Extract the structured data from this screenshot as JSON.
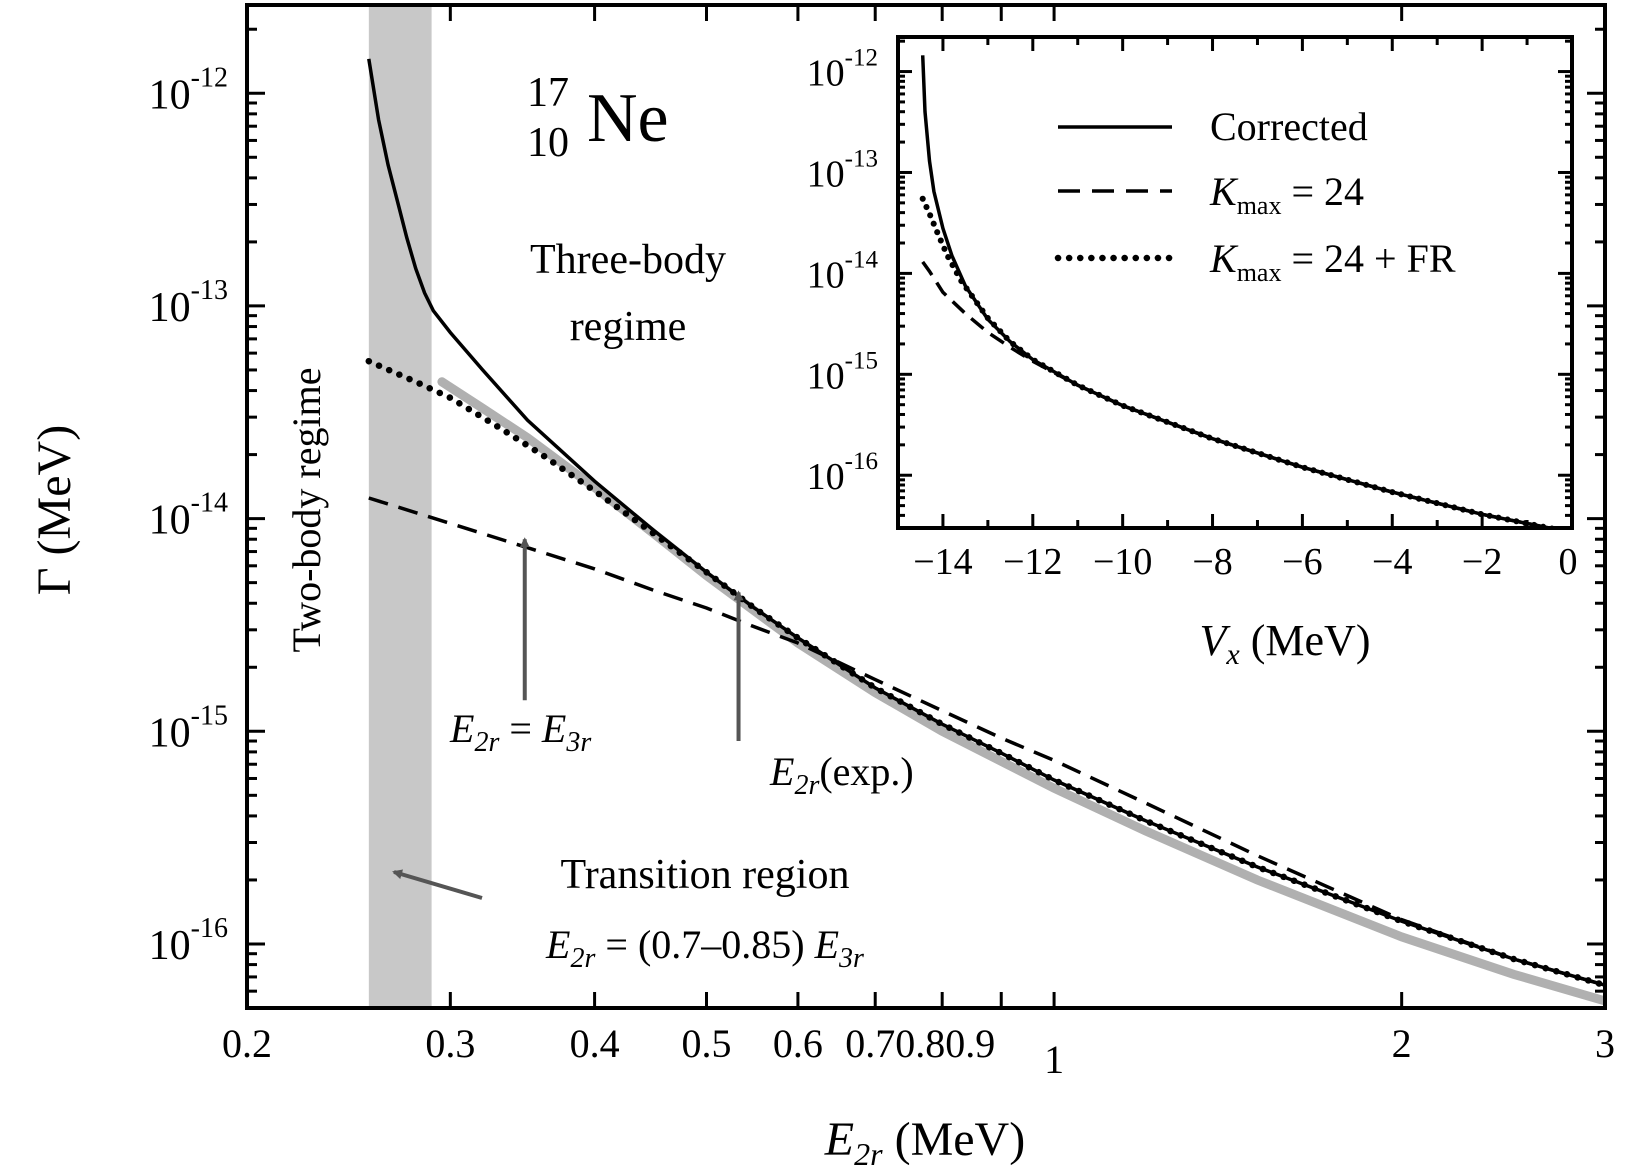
{
  "chart_data": [
    {
      "type": "line",
      "xscale": "log",
      "yscale": "log",
      "xlim": [
        0.2,
        3
      ],
      "ylim": [
        5e-17,
        2.6e-12
      ],
      "xlabel": {
        "var": "E",
        "sub": "2r",
        "unit": "(MeV)"
      },
      "ylabel": {
        "var": "Γ",
        "unit": "(MeV)"
      },
      "xticks": [
        {
          "value": 0.2,
          "label": "0.2"
        },
        {
          "value": 0.3,
          "label": "0.3"
        },
        {
          "value": 0.4,
          "label": "0.4"
        },
        {
          "value": 0.5,
          "label": "0.5"
        },
        {
          "value": 0.6,
          "label": "0.6"
        },
        {
          "value": 0.7,
          "label": "0.70.80.9"
        },
        {
          "value": 1,
          "label": "1"
        },
        {
          "value": 2,
          "label": "2"
        },
        {
          "value": 3,
          "label": "3"
        }
      ],
      "yticks": [
        {
          "value": 1e-12,
          "base": "10",
          "exp": "-12"
        },
        {
          "value": 1e-13,
          "base": "10",
          "exp": "-13"
        },
        {
          "value": 1e-14,
          "base": "10",
          "exp": "-14"
        },
        {
          "value": 1e-15,
          "base": "10",
          "exp": "-15"
        },
        {
          "value": 1e-16,
          "base": "10",
          "exp": "-16"
        }
      ],
      "transition_band": {
        "x_from": 0.255,
        "x_to": 0.289
      },
      "nucleus": {
        "A": "17",
        "Z": "10",
        "symbol": "Ne"
      },
      "labels": {
        "three_body_line1": "Three-body",
        "three_body_line2": "regime",
        "two_body": "Two-body regime",
        "transition_title": "Transition region",
        "transition_formula_mid": " = (0.7–0.85) ",
        "arrow1_mid": " = ",
        "arrow2_tail": "(exp.)"
      },
      "arrows": [
        {
          "name": "E2r=E3r",
          "x": 0.348,
          "y_from": 1.4e-15,
          "y_to": 8e-15
        },
        {
          "name": "E2r(exp.)",
          "x": 0.533,
          "y_from": 9e-16,
          "y_to": 4.5e-15
        }
      ],
      "series": [
        {
          "style": "solid",
          "x": [
            0.255,
            0.26,
            0.265,
            0.27,
            0.275,
            0.28,
            0.285,
            0.29,
            0.3,
            0.32,
            0.35,
            0.4,
            0.45,
            0.5,
            0.55,
            0.6,
            0.7,
            0.8,
            0.9,
            1.0,
            1.2,
            1.5,
            2.0,
            2.5,
            3.0
          ],
          "y": [
            1.45e-12,
            7.5e-13,
            4.6e-13,
            3.1e-13,
            2.1e-13,
            1.5e-13,
            1.15e-13,
            9.5e-14,
            7.5e-14,
            5e-14,
            2.9e-14,
            1.5e-14,
            8.8e-15,
            5.6e-15,
            3.8e-15,
            2.75e-15,
            1.6e-15,
            1.08e-15,
            7.9e-16,
            5.9e-16,
            3.8e-16,
            2.3e-16,
            1.28e-16,
            8.5e-17,
            6.4e-17
          ]
        },
        {
          "style": "dashed",
          "x": [
            0.255,
            0.3,
            0.35,
            0.4,
            0.45,
            0.5,
            0.55,
            0.6,
            0.7,
            0.8,
            0.9,
            1.0,
            1.2,
            1.5,
            2.0,
            2.5,
            3.0
          ],
          "y": [
            1.25e-14,
            9.5e-15,
            7.3e-15,
            5.8e-15,
            4.6e-15,
            3.8e-15,
            3.1e-15,
            2.6e-15,
            1.75e-15,
            1.25e-15,
            9.3e-16,
            7.3e-16,
            4.6e-16,
            2.6e-16,
            1.3e-16,
            8.5e-17,
            6.4e-17
          ]
        },
        {
          "style": "dotted",
          "x": [
            0.255,
            0.28,
            0.3,
            0.33,
            0.36,
            0.4,
            0.45,
            0.5,
            0.55,
            0.6,
            0.7,
            0.8,
            0.9,
            1.0,
            1.2,
            1.5,
            2.0,
            2.5,
            3.0
          ],
          "y": [
            5.5e-14,
            4.4e-14,
            3.7e-14,
            2.7e-14,
            2e-14,
            1.35e-14,
            8.5e-15,
            5.6e-15,
            3.8e-15,
            2.75e-15,
            1.6e-15,
            1.08e-15,
            7.9e-16,
            5.9e-16,
            3.8e-16,
            2.3e-16,
            1.28e-16,
            8.5e-17,
            6.4e-17
          ]
        },
        {
          "style": "gray-thick",
          "x": [
            0.295,
            0.32,
            0.35,
            0.4,
            0.45,
            0.5,
            0.6,
            0.7,
            0.8,
            1.0,
            1.2,
            1.5,
            2.0,
            2.5,
            3.0
          ],
          "y": [
            4.4e-14,
            3.3e-14,
            2.4e-14,
            1.4e-14,
            8.5e-15,
            5.4e-15,
            2.6e-15,
            1.52e-15,
            1e-15,
            5.4e-16,
            3.4e-16,
            2e-16,
            1.08e-16,
            7.2e-17,
            5.4e-17
          ]
        }
      ]
    },
    {
      "type": "line",
      "xscale": "linear",
      "yscale": "log",
      "xlim": [
        -15,
        0
      ],
      "ylim": [
        3e-17,
        2.2e-12
      ],
      "xlabel": {
        "var": "V",
        "sub": "x",
        "unit": "(MeV)"
      },
      "xticks": [
        {
          "value": -14,
          "label": "−14"
        },
        {
          "value": -12,
          "label": "−12"
        },
        {
          "value": -10,
          "label": "−10"
        },
        {
          "value": -8,
          "label": "−8"
        },
        {
          "value": -6,
          "label": "−6"
        },
        {
          "value": -4,
          "label": "−4"
        },
        {
          "value": -2,
          "label": "−2"
        },
        {
          "value": 0,
          "label": "0"
        }
      ],
      "yticks": [
        {
          "value": 1e-12,
          "base": "10",
          "exp": "-12"
        },
        {
          "value": 1e-13,
          "base": "10",
          "exp": "-13"
        },
        {
          "value": 1e-14,
          "base": "10",
          "exp": "-14"
        },
        {
          "value": 1e-15,
          "base": "10",
          "exp": "-15"
        },
        {
          "value": 1e-16,
          "base": "10",
          "exp": "-16"
        }
      ],
      "legend": {
        "position": "top-right",
        "entries": [
          {
            "style": "solid",
            "label": "Corrected"
          },
          {
            "style": "dashed",
            "label_var": "K",
            "label_sub": "max",
            "label_tail": " = 24"
          },
          {
            "style": "dotted",
            "label_var": "K",
            "label_sub": "max",
            "label_tail": " = 24 + FR"
          }
        ]
      },
      "series": [
        {
          "style": "solid",
          "x": [
            -14.45,
            -14.4,
            -14.3,
            -14.2,
            -14.0,
            -13.8,
            -13.5,
            -13.0,
            -12.5,
            -12.0,
            -11.0,
            -10.0,
            -8.0,
            -6.0,
            -4.0,
            -2.0,
            0.0
          ],
          "y": [
            1.45e-12,
            4e-13,
            1.3e-13,
            6.5e-14,
            2.8e-14,
            1.5e-14,
            7.5e-15,
            3.5e-15,
            2.1e-15,
            1.4e-15,
            7.8e-16,
            4.9e-16,
            2.3e-16,
            1.2e-16,
            6.8e-17,
            4.1e-17,
            2.7e-17
          ]
        },
        {
          "style": "dashed",
          "x": [
            -14.45,
            -14.3,
            -14.0,
            -13.5,
            -13.0,
            -12.5,
            -12.0,
            -11.0,
            -10.0,
            -8.0,
            -6.0,
            -4.0,
            -2.0,
            0.0
          ],
          "y": [
            1.3e-14,
            1.05e-14,
            6.5e-15,
            4e-15,
            2.6e-15,
            1.85e-15,
            1.35e-15,
            7.8e-16,
            4.9e-16,
            2.3e-16,
            1.2e-16,
            6.8e-17,
            4.1e-17,
            2.7e-17
          ]
        },
        {
          "style": "dotted",
          "x": [
            -14.45,
            -14.3,
            -14.1,
            -13.9,
            -13.6,
            -13.0,
            -12.5,
            -12.0,
            -11.0,
            -10.0,
            -8.0,
            -6.0,
            -4.0,
            -2.0,
            0.0
          ],
          "y": [
            5.5e-14,
            3.9e-14,
            2.4e-14,
            1.5e-14,
            8.5e-15,
            3.6e-15,
            2.1e-15,
            1.4e-15,
            7.8e-16,
            4.9e-16,
            2.3e-16,
            1.2e-16,
            6.8e-17,
            4.1e-17,
            2.7e-17
          ]
        }
      ]
    }
  ]
}
